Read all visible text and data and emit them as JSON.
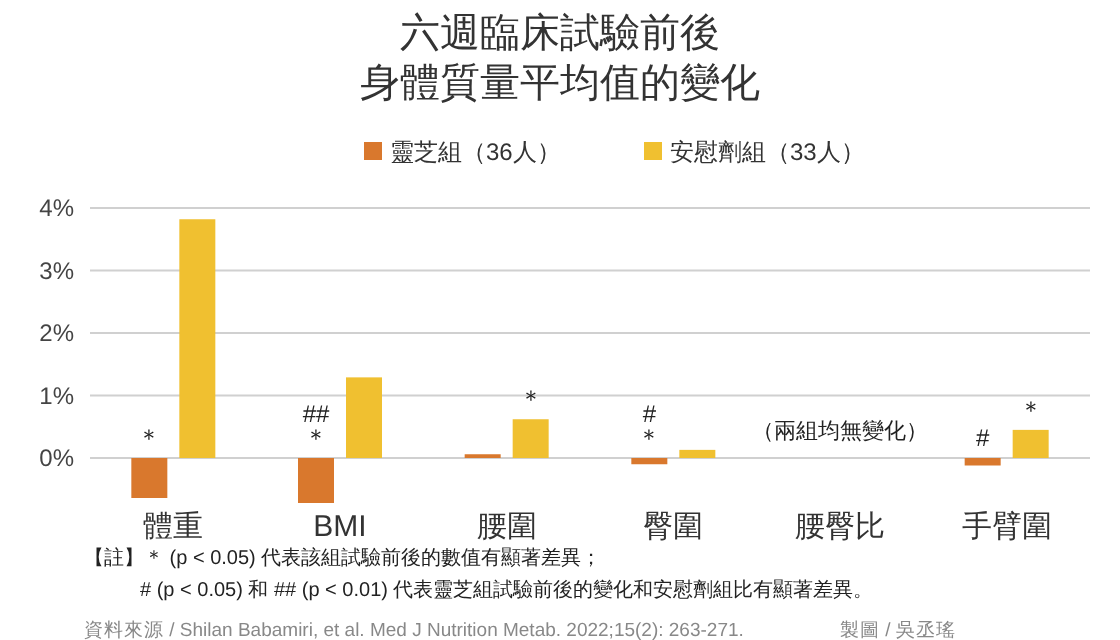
{
  "chart_data": {
    "type": "bar",
    "title": "六週臨床試驗前後",
    "subtitle": "身體質量平均值的變化",
    "categories": [
      "體重",
      "BMI",
      "腰圍",
      "臀圍",
      "腰臀比",
      "手臂圍"
    ],
    "series": [
      {
        "name": "靈芝組（36人）",
        "color": "#d9782d",
        "values": [
          -0.64,
          -0.72,
          0.06,
          -0.1,
          null,
          -0.12
        ]
      },
      {
        "name": "安慰劑組（33人）",
        "color": "#f0c030",
        "values": [
          3.82,
          1.29,
          0.62,
          0.13,
          null,
          0.45
        ]
      }
    ],
    "ylim": [
      -0.8,
      4
    ],
    "yticks": [
      {
        "value": 0,
        "label": "0%"
      },
      {
        "value": 1,
        "label": "1%"
      },
      {
        "value": 2,
        "label": "2%"
      },
      {
        "value": 3,
        "label": "3%"
      },
      {
        "value": 4,
        "label": "4%"
      }
    ],
    "grid": "y",
    "legend": "top",
    "annotations": [
      {
        "text": "＊",
        "x": "體重",
        "y": -0.64
      },
      {
        "text": "＊",
        "x": "BMI",
        "y": -0.72
      },
      {
        "text": "＊",
        "x": "腰圍",
        "y": 0.62
      },
      {
        "text": "＊",
        "x": "臀圍",
        "y": -0.1
      },
      {
        "text": "#",
        "x": "臀圍",
        "y": -0.1
      },
      {
        "text": "#",
        "x": "手臂圍",
        "y": -0.12
      },
      {
        "text": "＊",
        "x": "手臂圍",
        "y": 0.45
      },
      "##",
      "（兩組均無變化）",
      "【註】＊ (p < 0.05) 代表該組試驗前後的數值有顯著差異；",
      "# (p < 0.05) 和 ## (p < 0.01) 代表靈芝組試驗前後的變化和安慰劑組比有顯著差異。",
      "資料來源 / Shilan Babamiri, et al. Med J Nutrition Metab. 2022;15(2): 263-271.",
      "製圖 / 吳丞瑤"
    ]
  }
}
